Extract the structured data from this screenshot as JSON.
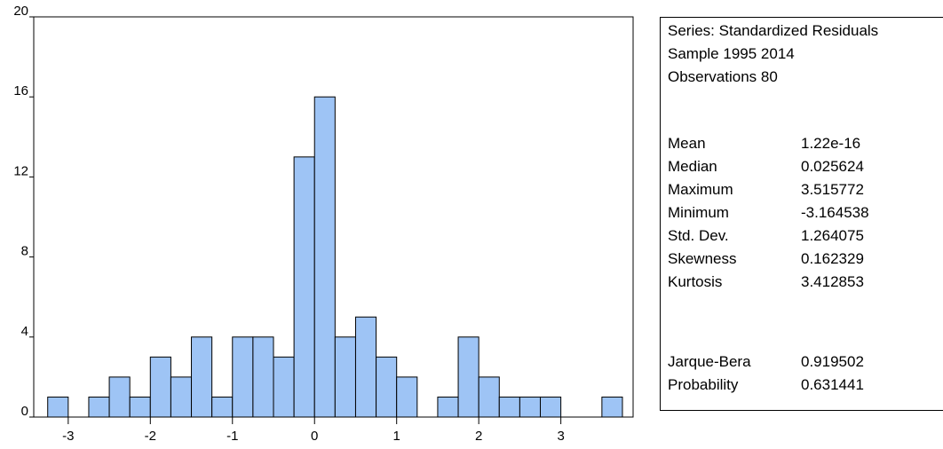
{
  "chart_data": {
    "type": "histogram",
    "bins": [
      -3.25,
      -3.0,
      -2.75,
      -2.5,
      -2.25,
      -2.0,
      -1.75,
      -1.5,
      -1.25,
      -1.0,
      -0.75,
      -0.5,
      -0.25,
      0,
      0.25,
      0.5,
      0.75,
      1.0,
      1.25,
      1.5,
      1.75,
      2.0,
      2.25,
      2.5,
      2.75,
      3.0,
      3.25,
      3.5,
      3.75
    ],
    "values": [
      1,
      0,
      1,
      2,
      1,
      3,
      2,
      4,
      1,
      4,
      4,
      3,
      13,
      16,
      4,
      5,
      3,
      2,
      0,
      1,
      4,
      2,
      1,
      1,
      1,
      0,
      0,
      1
    ],
    "color": "#9ec4f5",
    "xlim": [
      -3.42,
      3.88
    ],
    "xticks": [
      -3,
      -2,
      -1,
      0,
      1,
      2,
      3
    ],
    "ylim": [
      0,
      20
    ],
    "yticks": [
      0,
      4,
      8,
      12,
      16,
      20
    ]
  },
  "stats": {
    "header": [
      "Series: Standardized Residuals",
      "Sample 1995 2014",
      "Observations 80"
    ],
    "rows": [
      [
        "Mean",
        "1.22e-16"
      ],
      [
        "Median",
        "0.025624"
      ],
      [
        "Maximum",
        "3.515772"
      ],
      [
        "Minimum",
        "-3.164538"
      ],
      [
        "Std. Dev.",
        "1.264075"
      ],
      [
        "Skewness",
        "0.162329"
      ],
      [
        "Kurtosis",
        "3.412853"
      ]
    ],
    "tests": [
      [
        "Jarque-Bera",
        "0.919502"
      ],
      [
        "Probability",
        "0.631441"
      ]
    ]
  }
}
